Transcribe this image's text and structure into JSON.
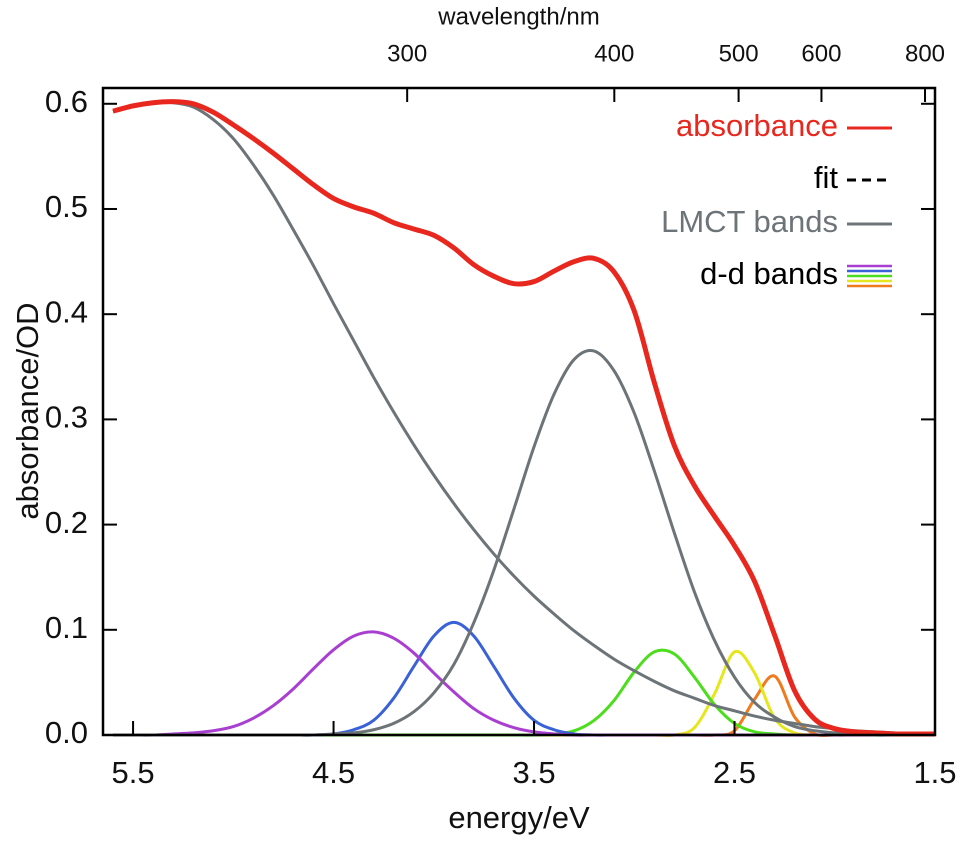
{
  "chart_data": {
    "type": "line",
    "xlabel": "energy/eV",
    "ylabel": "absorbance/OD",
    "x2label": "wavelength/nm",
    "xlim": [
      5.65,
      1.5
    ],
    "ylim": [
      0,
      0.615
    ],
    "xticks": [
      5.5,
      4.5,
      3.5,
      2.5,
      1.5
    ],
    "yticks": [
      {
        "value": 0,
        "label": "0.0"
      },
      0.1,
      0.2,
      0.3,
      0.4,
      0.5,
      0.6
    ],
    "x2ticks": [
      300,
      400,
      500,
      600,
      800
    ],
    "legend": "upper right",
    "x": [
      5.6,
      5.5,
      5.4,
      5.3,
      5.2,
      5.1,
      5.0,
      4.9,
      4.8,
      4.7,
      4.6,
      4.5,
      4.4,
      4.3,
      4.2,
      4.1,
      4.0,
      3.9,
      3.8,
      3.7,
      3.6,
      3.5,
      3.4,
      3.3,
      3.2,
      3.1,
      3.0,
      2.9,
      2.8,
      2.7,
      2.6,
      2.5,
      2.4,
      2.3,
      2.2,
      2.1,
      2.0,
      1.9,
      1.8,
      1.7,
      1.6,
      1.5
    ],
    "series": [
      {
        "name": "absorbance",
        "color": "#e8281e",
        "values": [
          0.593,
          0.598,
          0.601,
          0.602,
          0.6,
          0.592,
          0.58,
          0.567,
          0.553,
          0.538,
          0.523,
          0.51,
          0.502,
          0.496,
          0.487,
          0.481,
          0.475,
          0.463,
          0.447,
          0.436,
          0.429,
          0.431,
          0.441,
          0.45,
          0.453,
          0.44,
          0.403,
          0.335,
          0.275,
          0.237,
          0.208,
          0.18,
          0.146,
          0.095,
          0.042,
          0.015,
          0.006,
          0.003,
          0.002,
          0.001,
          0.001,
          0.001
        ]
      },
      {
        "name": "fit",
        "color": "#000000",
        "dashed": true,
        "values": [
          0.593,
          0.598,
          0.601,
          0.602,
          0.6,
          0.592,
          0.58,
          0.567,
          0.553,
          0.538,
          0.523,
          0.51,
          0.502,
          0.496,
          0.487,
          0.481,
          0.475,
          0.463,
          0.447,
          0.436,
          0.429,
          0.431,
          0.441,
          0.45,
          0.453,
          0.44,
          0.403,
          0.335,
          0.275,
          0.237,
          0.208,
          0.18,
          0.146,
          0.095,
          0.042,
          0.015,
          0.006,
          0.003,
          0.002,
          0.001,
          0.001,
          0.001
        ]
      },
      {
        "name": "LMCT bands",
        "color": "#6d7478",
        "values": [
          0.593,
          0.598,
          0.601,
          0.601,
          0.597,
          0.585,
          0.567,
          0.542,
          0.513,
          0.48,
          0.446,
          0.41,
          0.375,
          0.34,
          0.307,
          0.276,
          0.247,
          0.22,
          0.195,
          0.172,
          0.151,
          0.132,
          0.115,
          0.099,
          0.085,
          0.072,
          0.061,
          0.051,
          0.042,
          0.035,
          0.028,
          0.023,
          0.018,
          0.014,
          0.011,
          0.008,
          0.006,
          0.004,
          0.003,
          0.002,
          0.001,
          0.001
        ]
      },
      {
        "name": "LMCT bands",
        "color": "#6d7478",
        "values": [
          0,
          0,
          0,
          0,
          0,
          0,
          0,
          0,
          0,
          0,
          0,
          0.001,
          0.002,
          0.005,
          0.011,
          0.022,
          0.04,
          0.067,
          0.107,
          0.157,
          0.215,
          0.274,
          0.324,
          0.357,
          0.365,
          0.346,
          0.306,
          0.251,
          0.192,
          0.136,
          0.09,
          0.055,
          0.031,
          0.017,
          0.008,
          0.004,
          0.002,
          0.001,
          0,
          0,
          0,
          0
        ]
      },
      {
        "name": "d-d bands",
        "color": "#a93fd0",
        "values": [
          0,
          0,
          0,
          0.001,
          0.002,
          0.004,
          0.008,
          0.016,
          0.028,
          0.044,
          0.063,
          0.081,
          0.094,
          0.098,
          0.092,
          0.078,
          0.059,
          0.041,
          0.025,
          0.014,
          0.007,
          0.003,
          0.001,
          0,
          0,
          0,
          0,
          0,
          0,
          0,
          0,
          0,
          0,
          0,
          0,
          0,
          0,
          0,
          0,
          0,
          0,
          0
        ]
      },
      {
        "name": "d-d bands",
        "color": "#3a62d8",
        "values": [
          0,
          0,
          0,
          0,
          0,
          0,
          0,
          0,
          0,
          0,
          0,
          0.001,
          0.005,
          0.014,
          0.035,
          0.065,
          0.094,
          0.107,
          0.094,
          0.065,
          0.035,
          0.014,
          0.005,
          0.001,
          0,
          0,
          0,
          0,
          0,
          0,
          0,
          0,
          0,
          0,
          0,
          0,
          0,
          0,
          0,
          0,
          0,
          0
        ]
      },
      {
        "name": "d-d bands",
        "color": "#4cde1c",
        "values": [
          0,
          0,
          0,
          0,
          0,
          0,
          0,
          0,
          0,
          0,
          0,
          0,
          0,
          0,
          0,
          0,
          0,
          0,
          0,
          0,
          0,
          0,
          0.001,
          0.004,
          0.014,
          0.033,
          0.06,
          0.079,
          0.077,
          0.055,
          0.029,
          0.011,
          0.003,
          0.001,
          0,
          0,
          0,
          0,
          0,
          0,
          0,
          0
        ]
      },
      {
        "name": "d-d bands",
        "color": "#e6e61e",
        "values": [
          0,
          0,
          0,
          0,
          0,
          0,
          0,
          0,
          0,
          0,
          0,
          0,
          0,
          0,
          0,
          0,
          0,
          0,
          0,
          0,
          0,
          0,
          0,
          0,
          0,
          0,
          0,
          0,
          0,
          0.007,
          0.039,
          0.079,
          0.059,
          0.016,
          0.002,
          0,
          0,
          0,
          0,
          0,
          0,
          0
        ]
      },
      {
        "name": "d-d bands",
        "color": "#f07a1e",
        "values": [
          0,
          0,
          0,
          0,
          0,
          0,
          0,
          0,
          0,
          0,
          0,
          0,
          0,
          0,
          0,
          0,
          0,
          0,
          0,
          0,
          0,
          0,
          0,
          0,
          0,
          0,
          0,
          0,
          0,
          0,
          0,
          0.004,
          0.034,
          0.056,
          0.017,
          0.001,
          0,
          0,
          0,
          0,
          0,
          0
        ]
      }
    ]
  }
}
